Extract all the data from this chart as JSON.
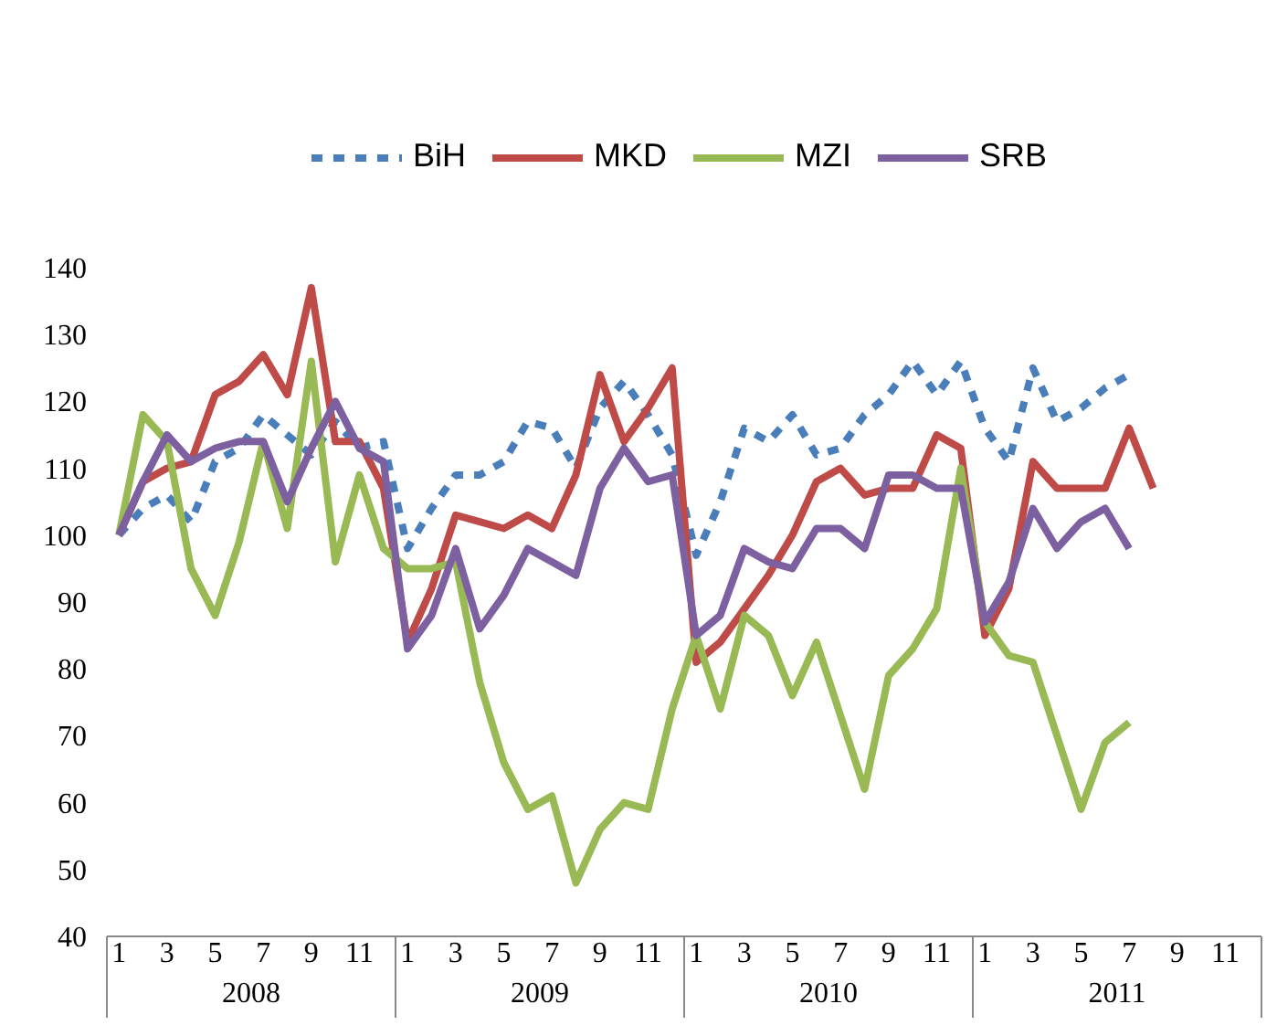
{
  "chart_data": {
    "type": "line",
    "categories": [
      "1",
      null,
      "3",
      null,
      "5",
      null,
      "7",
      null,
      "9",
      null,
      "11",
      null,
      "1",
      null,
      "3",
      null,
      "5",
      null,
      "7",
      null,
      "9",
      null,
      "11",
      null,
      "1",
      null,
      "3",
      null,
      "5",
      null,
      "7",
      null,
      "9",
      null,
      "11",
      null,
      "1",
      null,
      "3",
      null,
      "5",
      null,
      "7",
      null,
      "9",
      null,
      "11",
      null
    ],
    "annotations": [
      "2008",
      "2009",
      "2010",
      "2011"
    ],
    "series": [
      {
        "name": "BiH",
        "color": "#4a7ebb",
        "line_style": "dashed",
        "values": [
          100,
          104,
          106,
          102,
          111,
          113,
          118,
          115,
          112,
          117,
          113,
          114,
          98,
          104,
          109,
          109,
          111,
          117,
          116,
          110,
          119,
          123,
          118,
          112,
          97,
          105,
          116,
          114,
          118,
          112,
          113,
          118,
          121,
          126,
          121,
          126,
          116,
          111,
          125,
          117,
          119,
          122,
          124,
          null,
          null,
          null,
          null,
          null
        ]
      },
      {
        "name": "MKD",
        "color": "#be4b48",
        "line_style": "solid",
        "values": [
          100,
          108,
          110,
          111,
          121,
          123,
          127,
          121,
          137,
          114,
          114,
          107,
          84,
          92,
          103,
          102,
          101,
          103,
          101,
          109,
          124,
          114,
          119,
          125,
          81,
          84,
          89,
          94,
          100,
          108,
          110,
          106,
          107,
          107,
          115,
          113,
          85,
          92,
          111,
          107,
          107,
          107,
          116,
          107,
          null,
          null,
          null,
          null
        ]
      },
      {
        "name": "MZI",
        "color": "#98b954",
        "line_style": "solid",
        "values": [
          100,
          118,
          114,
          95,
          88,
          99,
          114,
          101,
          126,
          96,
          109,
          98,
          95,
          95,
          96,
          78,
          66,
          59,
          61,
          48,
          56,
          60,
          59,
          74,
          85,
          74,
          88,
          85,
          76,
          84,
          73,
          62,
          79,
          83,
          89,
          110,
          87,
          82,
          81,
          70,
          59,
          69,
          72,
          null,
          null,
          null,
          null,
          null
        ]
      },
      {
        "name": "SRB",
        "color": "#7d60a0",
        "line_style": "solid",
        "values": [
          100,
          108,
          115,
          111,
          113,
          114,
          114,
          105,
          113,
          120,
          113,
          111,
          83,
          88,
          98,
          86,
          91,
          98,
          96,
          94,
          107,
          113,
          108,
          109,
          85,
          88,
          98,
          96,
          95,
          101,
          101,
          98,
          109,
          109,
          107,
          107,
          87,
          93,
          104,
          98,
          102,
          104,
          98,
          null,
          null,
          null,
          null,
          null
        ]
      }
    ],
    "ylim": [
      40,
      140
    ],
    "yticks": [
      40,
      50,
      60,
      70,
      80,
      90,
      100,
      110,
      120,
      130,
      140
    ],
    "grid": false,
    "legend": "top",
    "marker": "none"
  }
}
